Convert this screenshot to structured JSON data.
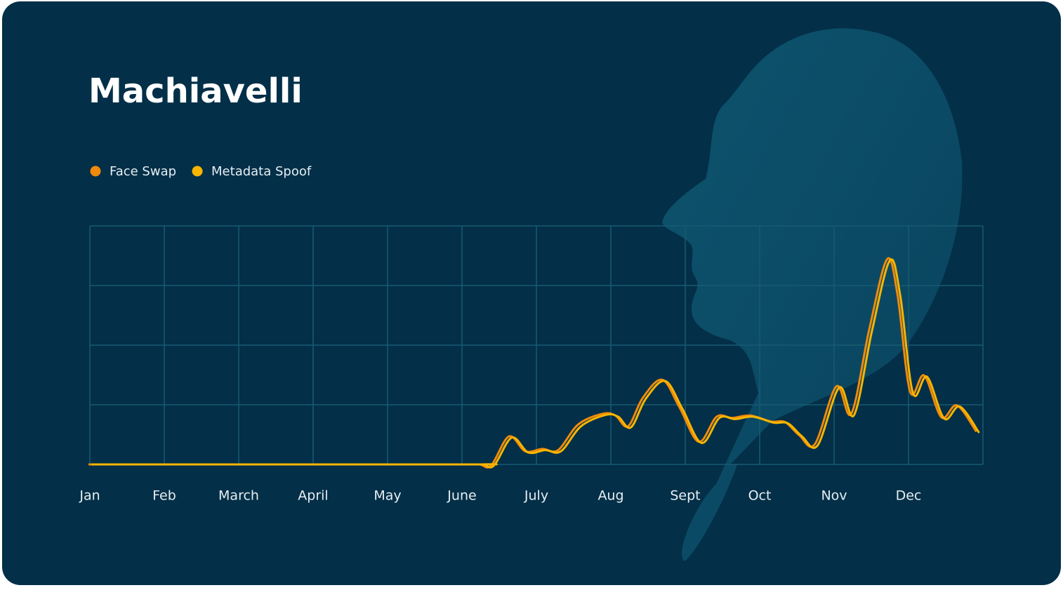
{
  "chart_data": {
    "type": "line",
    "title": "Machiavelli",
    "x": [
      0,
      5.0,
      5.25,
      5.41,
      5.65,
      5.87,
      6.1,
      6.31,
      6.58,
      6.91,
      7.08,
      7.25,
      7.45,
      7.71,
      7.94,
      8.2,
      8.44,
      8.65,
      8.89,
      9.17,
      9.36,
      9.55,
      9.76,
      10.05,
      10.25,
      10.49,
      10.73,
      10.87,
      11.04,
      11.23,
      11.46,
      11.67,
      11.93
    ],
    "series": [
      {
        "name": "Face Swap",
        "color": "#f08a0c",
        "values": [
          0,
          0,
          0,
          -0.02,
          0.47,
          0.22,
          0.26,
          0.24,
          0.67,
          0.85,
          0.82,
          0.64,
          1.12,
          1.42,
          0.96,
          0.38,
          0.8,
          0.78,
          0.82,
          0.72,
          0.71,
          0.49,
          0.34,
          1.31,
          0.85,
          2.26,
          3.44,
          2.85,
          1.22,
          1.49,
          0.79,
          0.99,
          0.55
        ]
      },
      {
        "name": "Metadata Spoof",
        "color": "#f7b500",
        "values": [
          0,
          0,
          0,
          -0.02,
          0.45,
          0.2,
          0.24,
          0.22,
          0.64,
          0.83,
          0.8,
          0.62,
          1.1,
          1.4,
          0.94,
          0.36,
          0.78,
          0.76,
          0.8,
          0.7,
          0.69,
          0.47,
          0.32,
          1.29,
          0.83,
          2.24,
          3.42,
          2.83,
          1.2,
          1.47,
          0.77,
          0.97,
          0.53
        ]
      }
    ],
    "xlim": [
      0,
      12
    ],
    "xticks": [
      {
        "value": 0,
        "label": "Jan"
      },
      {
        "value": 1,
        "label": "Feb"
      },
      {
        "value": 2,
        "label": "March"
      },
      {
        "value": 3,
        "label": "April"
      },
      {
        "value": 4,
        "label": "May"
      },
      {
        "value": 5,
        "label": "June"
      },
      {
        "value": 6,
        "label": "July"
      },
      {
        "value": 7,
        "label": "Aug"
      },
      {
        "value": 8,
        "label": "Sept"
      },
      {
        "value": 9,
        "label": "Oct"
      },
      {
        "value": 10,
        "label": "Nov"
      },
      {
        "value": 11,
        "label": "Dec"
      }
    ],
    "ylim": [
      0,
      4
    ],
    "yticks": [
      0,
      1,
      2,
      3,
      4
    ],
    "grid": true
  }
}
